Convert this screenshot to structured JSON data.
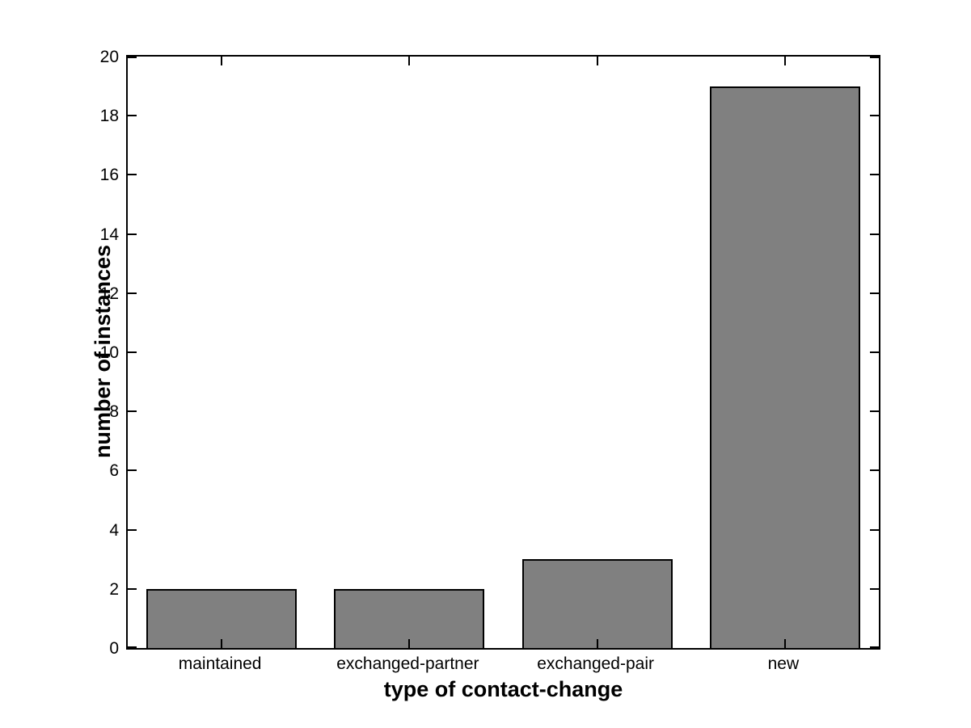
{
  "chart_data": {
    "type": "bar",
    "categories": [
      "maintained",
      "exchanged-partner",
      "exchanged-pair",
      "new"
    ],
    "values": [
      2,
      2,
      3,
      19
    ],
    "title": "",
    "xlabel": "type of contact-change",
    "ylabel": "number of instances",
    "ylim": [
      0,
      20
    ],
    "yticks": [
      0,
      2,
      4,
      6,
      8,
      10,
      12,
      14,
      16,
      18,
      20
    ],
    "bar_width_fraction": 0.8,
    "grid": false,
    "legend_position": "none",
    "colors": {
      "bar_fill": "#808080",
      "bar_edge": "#000000",
      "axis": "#000000",
      "background": "#ffffff",
      "text": "#000000"
    }
  }
}
